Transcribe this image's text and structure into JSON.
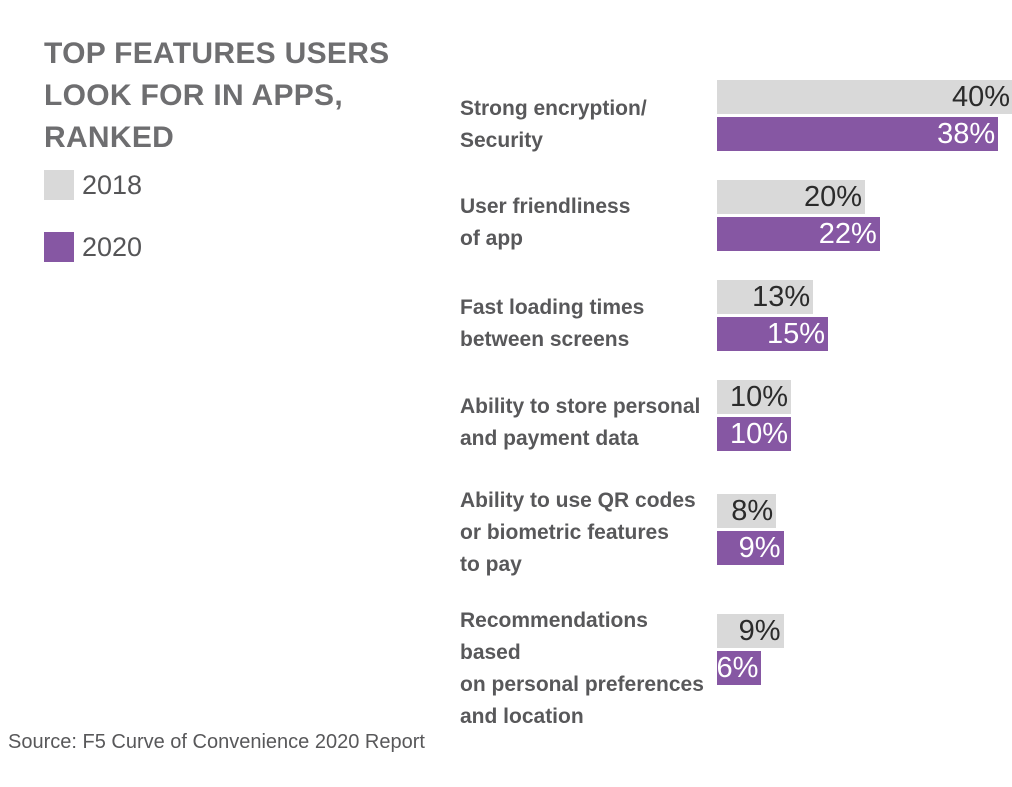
{
  "chart_data": {
    "type": "bar",
    "orientation": "horizontal",
    "title": "TOP FEATURES USERS LOOK FOR IN APPS, RANKED",
    "categories": [
      [
        "Strong encryption/",
        "Security"
      ],
      [
        "User friendliness",
        "of app"
      ],
      [
        "Fast loading times",
        "between screens"
      ],
      [
        "Ability to store personal",
        "and payment data"
      ],
      [
        "Ability to use QR codes",
        "or biometric features",
        "to pay"
      ],
      [
        "Recommendations based",
        "on personal preferences",
        "and location"
      ]
    ],
    "series": [
      {
        "name": "2018",
        "color": "#d9d9d9",
        "label_color": "#2b2b2b",
        "values": [
          40,
          20,
          13,
          10,
          8,
          9
        ],
        "labels": [
          "40%",
          "20%",
          "13%",
          "10%",
          "8%",
          "9%"
        ]
      },
      {
        "name": "2020",
        "color": "#8657a3",
        "label_color": "#ffffff",
        "values": [
          38,
          22,
          15,
          10,
          9,
          6
        ],
        "labels": [
          "38%",
          "22%",
          "15%",
          "10%",
          "9%",
          "6%"
        ]
      }
    ],
    "xlim": [
      0,
      40
    ],
    "legend_position": "top-left",
    "grid": false,
    "source": "Source: F5 Curve of Convenience 2020 Report"
  }
}
